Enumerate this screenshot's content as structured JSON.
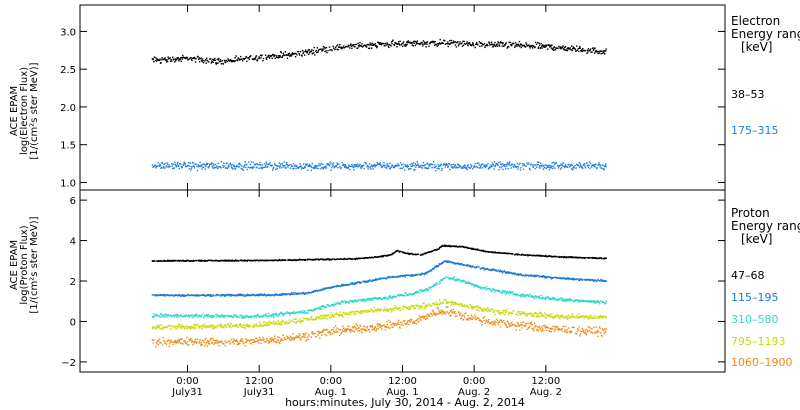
{
  "chart_data": [
    {
      "type": "scatter",
      "panel": "electron",
      "ylabel_lines": [
        "ACE EPAM",
        "log(Electron Flux)",
        "[1/(cm²s ster MeV)]"
      ],
      "ylim": [
        0.9,
        3.35
      ],
      "yticks": [
        "1.0",
        "1.5",
        "2.0",
        "2.5",
        "3.0"
      ],
      "legend_title": [
        "Electron",
        "Energy range",
        "[keV]"
      ],
      "series": [
        {
          "name": "38–53",
          "color": "#000000",
          "x": [
            0,
            6,
            12,
            18,
            24,
            30,
            36,
            42,
            48,
            54,
            60,
            66,
            72,
            76
          ],
          "y": [
            2.62,
            2.64,
            2.6,
            2.66,
            2.7,
            2.78,
            2.82,
            2.84,
            2.85,
            2.83,
            2.82,
            2.8,
            2.76,
            2.73
          ],
          "noise": 0.06
        },
        {
          "name": "175–315",
          "color": "#1e7fd8",
          "x": [
            0,
            76
          ],
          "y": [
            1.22,
            1.22
          ],
          "noise": 0.07
        }
      ]
    },
    {
      "type": "scatter",
      "panel": "proton",
      "ylabel_lines": [
        "ACE EPAM",
        "log(Proton Flux)",
        "[1/(cm²s ster MeV)]"
      ],
      "ylim": [
        -2.5,
        6.5
      ],
      "yticks": [
        "−2",
        "0",
        "2",
        "4",
        "6"
      ],
      "legend_title": [
        "Proton",
        "Energy range",
        "[keV]"
      ],
      "series": [
        {
          "name": "47–68",
          "color": "#000000",
          "x": [
            0,
            20,
            34,
            38,
            40,
            41,
            43,
            45,
            47,
            48,
            48.5,
            52,
            56,
            62,
            68,
            76
          ],
          "y": [
            3.0,
            3.02,
            3.1,
            3.2,
            3.3,
            3.5,
            3.35,
            3.3,
            3.5,
            3.6,
            3.75,
            3.7,
            3.45,
            3.3,
            3.2,
            3.12
          ],
          "noise": 0.04
        },
        {
          "name": "115–195",
          "color": "#1a78d4",
          "x": [
            0,
            16,
            20,
            26,
            30,
            36,
            40,
            44,
            46,
            48,
            49,
            52,
            56,
            62,
            68,
            76
          ],
          "y": [
            1.3,
            1.3,
            1.32,
            1.4,
            1.7,
            2.0,
            2.2,
            2.3,
            2.4,
            2.8,
            3.0,
            2.8,
            2.6,
            2.3,
            2.15,
            2.0
          ],
          "noise": 0.07
        },
        {
          "name": "310–580",
          "color": "#2fd6c8",
          "x": [
            0,
            16,
            20,
            26,
            30,
            36,
            40,
            44,
            46,
            48,
            49,
            52,
            56,
            62,
            68,
            76
          ],
          "y": [
            0.3,
            0.25,
            0.3,
            0.5,
            0.85,
            1.1,
            1.2,
            1.4,
            1.6,
            1.9,
            2.2,
            2.0,
            1.6,
            1.3,
            1.1,
            0.95
          ],
          "noise": 0.12
        },
        {
          "name": "795–1193",
          "color": "#c9d90a",
          "x": [
            0,
            16,
            20,
            26,
            30,
            36,
            40,
            44,
            46,
            48,
            49,
            52,
            56,
            62,
            68,
            76
          ],
          "y": [
            -0.3,
            -0.2,
            -0.1,
            0.1,
            0.3,
            0.5,
            0.6,
            0.7,
            0.8,
            0.9,
            1.0,
            0.8,
            0.55,
            0.4,
            0.25,
            0.2
          ],
          "noise": 0.18
        },
        {
          "name": "1060–1900",
          "color": "#ee8a16",
          "x": [
            0,
            16,
            20,
            26,
            30,
            36,
            40,
            44,
            46,
            48,
            49,
            52,
            56,
            62,
            68,
            76
          ],
          "y": [
            -1.0,
            -1.0,
            -0.9,
            -0.7,
            -0.5,
            -0.3,
            -0.2,
            0.0,
            0.3,
            0.5,
            0.55,
            0.3,
            0.0,
            -0.2,
            -0.4,
            -0.5
          ],
          "noise": 0.3
        }
      ]
    }
  ],
  "x_axis": {
    "xlim": [
      -12,
      96
    ],
    "ticks": [
      {
        "x": 6,
        "line1": "0:00",
        "line2": "July31"
      },
      {
        "x": 18,
        "line1": "12:00",
        "line2": "July31"
      },
      {
        "x": 30,
        "line1": "0:00",
        "line2": "Aug. 1"
      },
      {
        "x": 42,
        "line1": "12:00",
        "line2": "Aug. 1"
      },
      {
        "x": 54,
        "line1": "0:00",
        "line2": "Aug. 2"
      },
      {
        "x": 66,
        "line1": "12:00",
        "line2": "Aug. 2"
      }
    ],
    "label": "hours:minutes, July 30, 2014 - Aug. 2, 2014"
  }
}
